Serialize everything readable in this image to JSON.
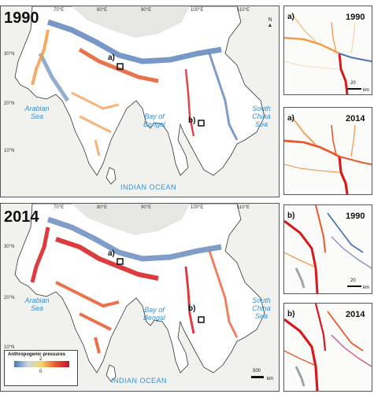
{
  "maps": [
    {
      "year": "1990",
      "labels": {
        "arabian_sea": "Arabian Sea",
        "bay_of_bengal": "Bay of Bengal",
        "south_china_sea": "South China Sea",
        "indian_ocean": "INDIAN OCEAN",
        "loc_a": "a)",
        "loc_b": "b)"
      },
      "lon_ticks": [
        "70°E",
        "80°E",
        "90°E",
        "100°E",
        "110°E"
      ],
      "lat_ticks": [
        "30°N",
        "20°N",
        "10°N"
      ],
      "north": "N"
    },
    {
      "year": "2014",
      "labels": {
        "arabian_sea": "Arabian Sea",
        "bay_of_bengal": "Bay of Bengal",
        "south_china_sea": "South China Sea",
        "indian_ocean": "INDIAN OCEAN",
        "loc_a": "a)",
        "loc_b": "b)"
      },
      "lon_ticks": [
        "70°E",
        "80°E",
        "90°E",
        "100°E",
        "110°E"
      ],
      "lat_ticks": [
        "30°N",
        "20°N",
        "10°N"
      ],
      "scale_value": "500",
      "scale_unit": "km"
    }
  ],
  "legend": {
    "title": "Anthropogenic pressures",
    "max": "2",
    "min": "0",
    "colors": [
      "#4a74b4",
      "#cfd8e0",
      "#f4d36a",
      "#e8582a",
      "#c8102e"
    ]
  },
  "insets": [
    {
      "label": "a)",
      "year": "1990",
      "scale_value": "20",
      "scale_unit": "km"
    },
    {
      "label": "a)",
      "year": "2014"
    },
    {
      "label": "b)",
      "year": "1990",
      "scale_value": "20",
      "scale_unit": "km"
    },
    {
      "label": "b)",
      "year": "2014"
    }
  ],
  "colors": {
    "river_high": "#d7191c",
    "river_mid": "#f39c4a",
    "river_low": "#4a74b4",
    "sea": "#3a8fd0"
  }
}
